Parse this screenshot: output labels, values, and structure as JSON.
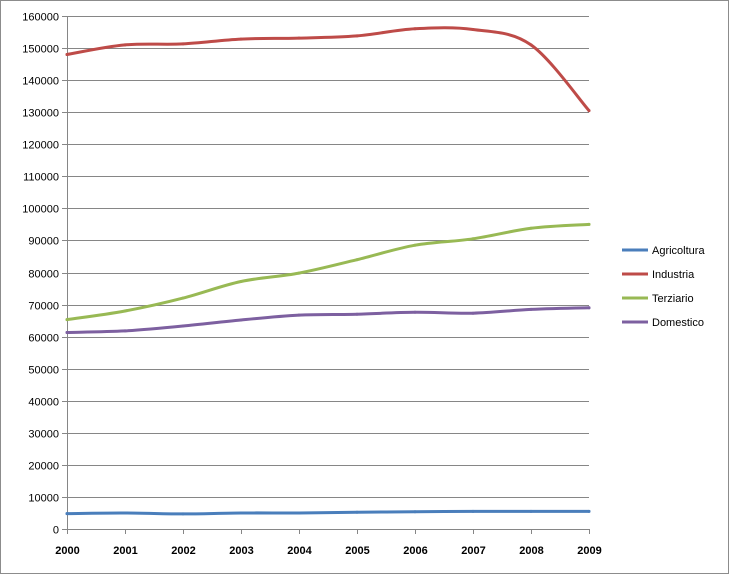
{
  "chart_data": {
    "type": "line",
    "title": "",
    "xlabel": "",
    "ylabel": "",
    "categories": [
      "2000",
      "2001",
      "2002",
      "2003",
      "2004",
      "2005",
      "2006",
      "2007",
      "2008",
      "2009"
    ],
    "ylim": [
      0,
      160000
    ],
    "yticks": [
      0,
      10000,
      20000,
      30000,
      40000,
      50000,
      60000,
      70000,
      80000,
      90000,
      100000,
      110000,
      120000,
      130000,
      140000,
      150000,
      160000
    ],
    "grid": true,
    "legend_position": "right",
    "series": [
      {
        "name": "Agricoltura",
        "color": "#4a7ebb",
        "values": [
          4800,
          5000,
          4700,
          5000,
          5000,
          5200,
          5400,
          5500,
          5500,
          5500
        ]
      },
      {
        "name": "Industria",
        "color": "#be4b48",
        "values": [
          148000,
          151000,
          151300,
          152800,
          153100,
          153800,
          156000,
          155800,
          151000,
          130500
        ]
      },
      {
        "name": "Terziario",
        "color": "#98b954",
        "values": [
          65300,
          68000,
          72000,
          77200,
          79800,
          84000,
          88500,
          90500,
          93800,
          95000
        ]
      },
      {
        "name": "Domestico",
        "color": "#7d60a0",
        "values": [
          61300,
          61800,
          63300,
          65200,
          66700,
          67000,
          67600,
          67300,
          68500,
          69000
        ]
      }
    ]
  }
}
